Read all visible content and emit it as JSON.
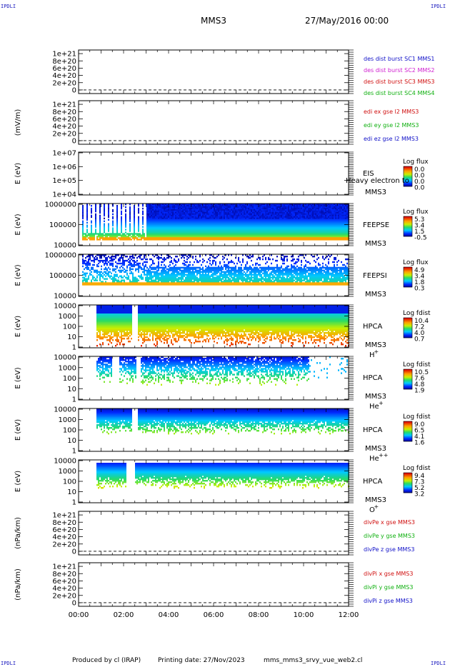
{
  "header": {
    "corner_label": "IPDLI",
    "spacecraft": "MMS3",
    "date": "27/May/2016 00:00"
  },
  "footer": {
    "produced_by": "Produced by cl (IRAP)",
    "printing_date": "Printing date: 27/Nov/2023",
    "script_name": "mms_mms3_srvy_vue_web2.cl"
  },
  "chart_data": [
    {
      "type": "line",
      "ylabel": "",
      "ytick_labels": [
        "1e+21",
        "8e+20",
        "6e+20",
        "4e+20",
        "2e+20",
        "0"
      ],
      "yticks": [
        1e+21,
        8e+20,
        6e+20,
        4e+20,
        2e+20,
        0
      ],
      "ylim": [
        -1e+20,
        1.1e+21
      ],
      "zero_line": true,
      "legend": [
        {
          "text": "des dist burst SC1 MMS1",
          "color": "#1010c8"
        },
        {
          "text": "des dist burst SC2 MMS2",
          "color": "#d020d0"
        },
        {
          "text": "des dist burst SC3 MMS3",
          "color": "#d01010"
        },
        {
          "text": "des dist burst SC4 MMS4",
          "color": "#10b010"
        }
      ]
    },
    {
      "type": "line",
      "ylabel": "(mV/m)",
      "ytick_labels": [
        "1e+21",
        "8e+20",
        "6e+20",
        "4e+20",
        "2e+20",
        "0"
      ],
      "yticks": [
        1e+21,
        8e+20,
        6e+20,
        4e+20,
        2e+20,
        0
      ],
      "ylim": [
        -1e+20,
        1.1e+21
      ],
      "zero_line": true,
      "legend": [
        {
          "text": "edi ex gse l2 MMS3",
          "color": "#d01010"
        },
        {
          "text": "edi ey gse l2 MMS3",
          "color": "#10b010"
        },
        {
          "text": "edi ez gse l2 MMS3",
          "color": "#1010c8"
        }
      ]
    },
    {
      "type": "heatmap",
      "ylabel": "E (eV)",
      "ytick_labels": [
        "1e+07",
        "1e+06",
        "1e+05",
        "1e+04"
      ],
      "instrument": [
        "EIS",
        "MMS3"
      ],
      "overlay_text": "Heavy electron to",
      "colorbar": {
        "title": "Log flux",
        "ticks": [
          "0.0",
          "0.0",
          "0.0",
          "0.0"
        ]
      },
      "pattern": "empty"
    },
    {
      "type": "heatmap",
      "ylabel": "E (eV)",
      "ytick_labels": [
        "1000000",
        "100000",
        "10000"
      ],
      "instrument": [
        "FEEPSE",
        "MMS3"
      ],
      "colorbar": {
        "title": "Log flux",
        "ticks": [
          "5.3",
          "3.4",
          "1.5",
          "-0.5"
        ]
      },
      "pattern": "feepse"
    },
    {
      "type": "heatmap",
      "ylabel": "E (eV)",
      "ytick_labels": [
        "1000000",
        "100000",
        "10000"
      ],
      "instrument": [
        "FEEPSI",
        "MMS3"
      ],
      "colorbar": {
        "title": "Log flux",
        "ticks": [
          "4.9",
          "3.4",
          "1.8",
          "0.3"
        ]
      },
      "pattern": "feepsi"
    },
    {
      "type": "heatmap",
      "ylabel": "E (eV)",
      "ytick_labels": [
        "10000",
        "1000",
        "100",
        "10",
        "1"
      ],
      "instrument": [
        "HPCA",
        "MMS3"
      ],
      "species": "H",
      "charge": "+",
      "colorbar": {
        "title": "Log fdist",
        "ticks": [
          "10.4",
          "7.2",
          "4.0",
          "0.7"
        ]
      },
      "pattern": "hplus"
    },
    {
      "type": "heatmap",
      "ylabel": "E (eV)",
      "ytick_labels": [
        "10000",
        "1000",
        "100",
        "10",
        "1"
      ],
      "instrument": [
        "HPCA",
        "MMS3"
      ],
      "species": "He",
      "charge": "+",
      "colorbar": {
        "title": "Log fdist",
        "ticks": [
          "10.5",
          "7.6",
          "4.8",
          "1.9"
        ]
      },
      "pattern": "heplus"
    },
    {
      "type": "heatmap",
      "ylabel": "E (eV)",
      "ytick_labels": [
        "10000",
        "1000",
        "100",
        "10",
        "1"
      ],
      "instrument": [
        "HPCA",
        "MMS3"
      ],
      "species": "He",
      "charge": "++",
      "colorbar": {
        "title": "Log fdist",
        "ticks": [
          "9.0",
          "6.5",
          "4.1",
          "1.6"
        ]
      },
      "pattern": "hepp"
    },
    {
      "type": "heatmap",
      "ylabel": "E (eV)",
      "ytick_labels": [
        "10000",
        "1000",
        "100",
        "10",
        "1"
      ],
      "instrument": [
        "HPCA",
        "MMS3"
      ],
      "species": "O",
      "charge": "+",
      "colorbar": {
        "title": "Log fdist",
        "ticks": [
          "9.4",
          "7.3",
          "5.2",
          "3.2"
        ]
      },
      "pattern": "oplus"
    },
    {
      "type": "line",
      "ylabel": "(nPa/km)",
      "ytick_labels": [
        "1e+21",
        "8e+20",
        "6e+20",
        "4e+20",
        "2e+20",
        "0"
      ],
      "yticks": [
        1e+21,
        8e+20,
        6e+20,
        4e+20,
        2e+20,
        0
      ],
      "ylim": [
        -1e+20,
        1.1e+21
      ],
      "zero_line": true,
      "legend": [
        {
          "text": "divPe x gse MMS3",
          "color": "#d01010"
        },
        {
          "text": "divPe y gse MMS3",
          "color": "#10b010"
        },
        {
          "text": "divPe z gse MMS3",
          "color": "#1010c8"
        }
      ]
    },
    {
      "type": "line",
      "ylabel": "(nPa/km)",
      "ytick_labels": [
        "1e+21",
        "8e+20",
        "6e+20",
        "4e+20",
        "2e+20",
        "0"
      ],
      "yticks": [
        1e+21,
        8e+20,
        6e+20,
        4e+20,
        2e+20,
        0
      ],
      "ylim": [
        -1e+20,
        1.1e+21
      ],
      "zero_line": true,
      "legend": [
        {
          "text": "divPi x gse MMS3",
          "color": "#d01010"
        },
        {
          "text": "divPi y gse MMS3",
          "color": "#10b010"
        },
        {
          "text": "divPi z gse MMS3",
          "color": "#1010c8"
        }
      ]
    }
  ],
  "time_axis": {
    "tick_labels": [
      "00:00",
      "02:00",
      "04:00",
      "06:00",
      "08:00",
      "10:00",
      "12:00"
    ],
    "range_hours": [
      0,
      12
    ]
  }
}
